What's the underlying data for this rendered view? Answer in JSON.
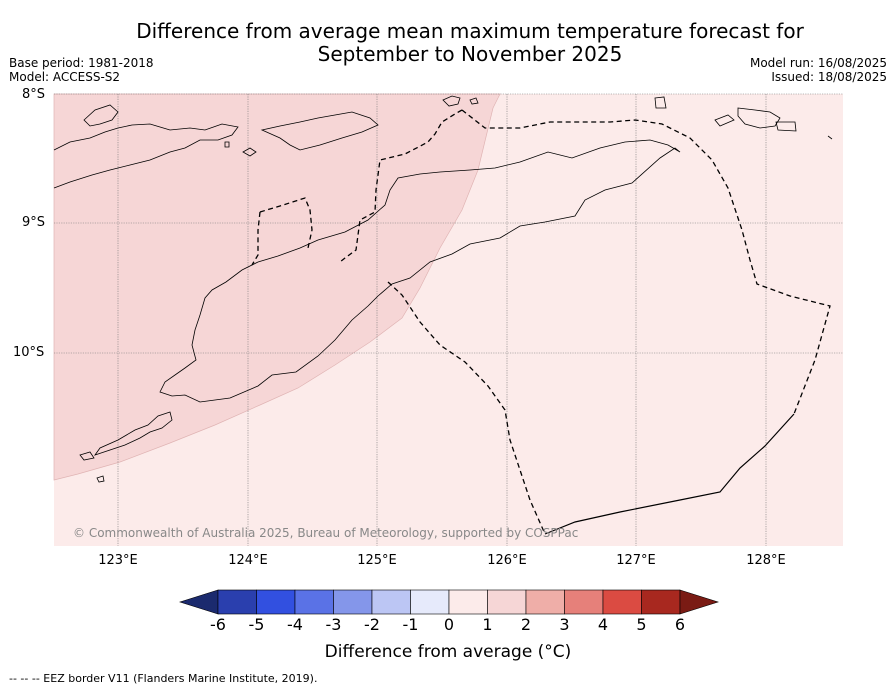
{
  "title_line1": "Difference from average mean maximum temperature forecast for",
  "title_line2": "September to November 2025",
  "base_period": "Base period: 1981-2018",
  "model": "Model: ACCESS-S2",
  "model_run": "Model run: 16/08/2025",
  "issued": "Issued: 18/08/2025",
  "lat_labels": [
    "8°S",
    "9°S",
    "10°S"
  ],
  "lon_labels": [
    "123°E",
    "124°E",
    "125°E",
    "126°E",
    "127°E",
    "128°E"
  ],
  "copyright": "© Commonwealth of Australia 2025, Bureau of Meteorology, supported by COSPPac",
  "colorbar": {
    "ticks": [
      "-6",
      "-5",
      "-4",
      "-3",
      "-2",
      "-1",
      "0",
      "1",
      "2",
      "3",
      "4",
      "5",
      "6"
    ],
    "colors": [
      "#1b2a6e",
      "#2a3fae",
      "#3250e0",
      "#5a72e6",
      "#8496ea",
      "#bcc6f4",
      "#e6eafb",
      "#fcebea",
      "#f6d6d6",
      "#efaea8",
      "#e6807a",
      "#db4b42",
      "#a8281f",
      "#7a1b14"
    ],
    "label": "Difference from average (°C)"
  },
  "regions": {
    "west_fill": "#f6d6d6",
    "east_fill": "#fcebea"
  },
  "footnote": "-- -- -- EEZ border V11 (Flanders Marine Institute, 2019)."
}
